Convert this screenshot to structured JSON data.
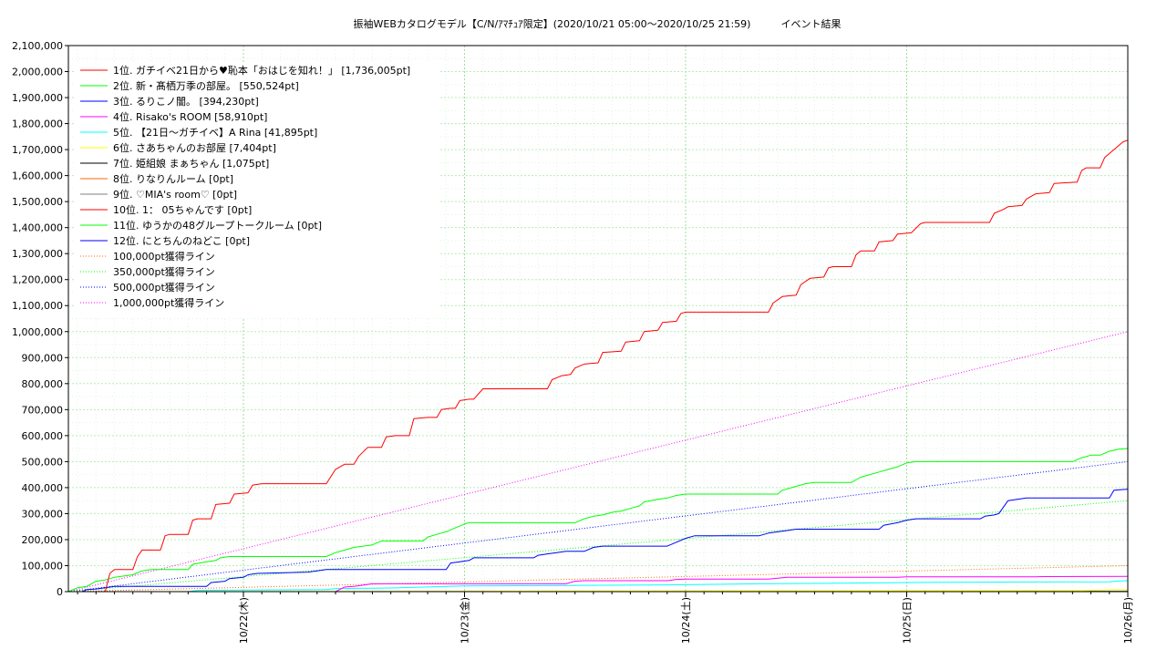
{
  "chart_data": {
    "type": "line",
    "title": "振袖WEBカタログモデル【C/N/ｱﾏﾁｭｱ限定】(2020/10/21 05:00～2020/10/25 21:59)　　　イベント結果",
    "xlabel": "",
    "ylabel": "",
    "ylim": [
      0,
      2100000
    ],
    "y_ticks": [
      "0",
      "100,000",
      "200,000",
      "300,000",
      "400,000",
      "500,000",
      "600,000",
      "700,000",
      "800,000",
      "900,000",
      "1,000,000",
      "1,100,000",
      "1,200,000",
      "1,300,000",
      "1,400,000",
      "1,500,000",
      "1,600,000",
      "1,700,000",
      "1,800,000",
      "1,900,000",
      "2,000,000",
      "2,100,000"
    ],
    "x_range_hours": [
      5,
      120
    ],
    "x_ticks": [
      {
        "label": "10/22(木)",
        "hour": 24
      },
      {
        "label": "10/23(金)",
        "hour": 48
      },
      {
        "label": "10/24(土)",
        "hour": 72
      },
      {
        "label": "10/25(日)",
        "hour": 96
      },
      {
        "label": "10/26(月)",
        "hour": 120
      }
    ],
    "grid": true,
    "legend_position": "top-left",
    "series": [
      {
        "name": "1位. ガチイベ21日から♥恥本「おはじを知れ！」 [1,736,005pt]",
        "color": "#ff0000",
        "points": [
          [
            5,
            0
          ],
          [
            9,
            0
          ],
          [
            9.5,
            70000
          ],
          [
            10,
            85000
          ],
          [
            12,
            85000
          ],
          [
            12.5,
            135000
          ],
          [
            13,
            160000
          ],
          [
            15,
            160000
          ],
          [
            15.5,
            215000
          ],
          [
            16,
            220000
          ],
          [
            18,
            220000
          ],
          [
            18.5,
            275000
          ],
          [
            19,
            280000
          ],
          [
            20.5,
            280000
          ],
          [
            21,
            335000
          ],
          [
            22.5,
            340000
          ],
          [
            23,
            375000
          ],
          [
            24.5,
            380000
          ],
          [
            25,
            410000
          ],
          [
            26,
            415000
          ],
          [
            33,
            415000
          ],
          [
            34,
            470000
          ],
          [
            35,
            490000
          ],
          [
            36,
            490000
          ],
          [
            36.5,
            520000
          ],
          [
            37.5,
            555000
          ],
          [
            39,
            555000
          ],
          [
            39.5,
            595000
          ],
          [
            40.5,
            600000
          ],
          [
            42,
            600000
          ],
          [
            42.5,
            665000
          ],
          [
            44,
            670000
          ],
          [
            45,
            670000
          ],
          [
            45.5,
            700000
          ],
          [
            46.5,
            705000
          ],
          [
            47,
            705000
          ],
          [
            47.5,
            735000
          ],
          [
            48.5,
            740000
          ],
          [
            49,
            740000
          ],
          [
            50,
            780000
          ],
          [
            57,
            780000
          ],
          [
            57.5,
            815000
          ],
          [
            58.5,
            830000
          ],
          [
            59.5,
            835000
          ],
          [
            60,
            860000
          ],
          [
            61,
            875000
          ],
          [
            62.5,
            880000
          ],
          [
            63,
            920000
          ],
          [
            65,
            925000
          ],
          [
            65.5,
            960000
          ],
          [
            67,
            965000
          ],
          [
            67.5,
            1000000
          ],
          [
            69,
            1005000
          ],
          [
            69.5,
            1035000
          ],
          [
            71,
            1040000
          ],
          [
            71.5,
            1070000
          ],
          [
            72,
            1075000
          ],
          [
            81,
            1075000
          ],
          [
            81.5,
            1110000
          ],
          [
            82.5,
            1135000
          ],
          [
            84,
            1140000
          ],
          [
            84.5,
            1180000
          ],
          [
            85.5,
            1205000
          ],
          [
            87,
            1210000
          ],
          [
            87.5,
            1245000
          ],
          [
            88,
            1250000
          ],
          [
            90,
            1250000
          ],
          [
            90.5,
            1295000
          ],
          [
            91,
            1310000
          ],
          [
            92.5,
            1310000
          ],
          [
            93,
            1345000
          ],
          [
            94.5,
            1350000
          ],
          [
            95,
            1375000
          ],
          [
            96.5,
            1380000
          ],
          [
            97.5,
            1415000
          ],
          [
            98,
            1420000
          ],
          [
            105,
            1420000
          ],
          [
            105.5,
            1455000
          ],
          [
            106.5,
            1470000
          ],
          [
            107,
            1480000
          ],
          [
            108.5,
            1485000
          ],
          [
            109,
            1510000
          ],
          [
            110,
            1530000
          ],
          [
            111.5,
            1535000
          ],
          [
            112,
            1570000
          ],
          [
            114.5,
            1575000
          ],
          [
            115,
            1620000
          ],
          [
            115.5,
            1630000
          ],
          [
            117,
            1630000
          ],
          [
            117.5,
            1670000
          ],
          [
            118.5,
            1700000
          ],
          [
            119.5,
            1730000
          ],
          [
            120,
            1736005
          ]
        ]
      },
      {
        "name": "2位. 新・髙栖万季の部屋。 [550,524pt]",
        "color": "#00ff00",
        "points": [
          [
            5,
            0
          ],
          [
            6,
            15000
          ],
          [
            7,
            20000
          ],
          [
            8,
            40000
          ],
          [
            9,
            45000
          ],
          [
            10,
            55000
          ],
          [
            11,
            60000
          ],
          [
            12,
            65000
          ],
          [
            13,
            80000
          ],
          [
            14,
            85000
          ],
          [
            18,
            85000
          ],
          [
            18.5,
            105000
          ],
          [
            20,
            115000
          ],
          [
            21,
            120000
          ],
          [
            21.5,
            130000
          ],
          [
            22.5,
            135000
          ],
          [
            33,
            135000
          ],
          [
            34,
            150000
          ],
          [
            35,
            160000
          ],
          [
            36,
            170000
          ],
          [
            37,
            175000
          ],
          [
            38,
            180000
          ],
          [
            39,
            195000
          ],
          [
            43.5,
            195000
          ],
          [
            44,
            210000
          ],
          [
            45,
            220000
          ],
          [
            46,
            230000
          ],
          [
            47,
            245000
          ],
          [
            48,
            260000
          ],
          [
            48.5,
            265000
          ],
          [
            60,
            265000
          ],
          [
            61,
            280000
          ],
          [
            62,
            290000
          ],
          [
            63,
            295000
          ],
          [
            64,
            305000
          ],
          [
            65,
            310000
          ],
          [
            66,
            320000
          ],
          [
            67,
            330000
          ],
          [
            67.5,
            345000
          ],
          [
            69,
            355000
          ],
          [
            70,
            360000
          ],
          [
            71,
            370000
          ],
          [
            72,
            375000
          ],
          [
            82,
            375000
          ],
          [
            82.5,
            390000
          ],
          [
            84,
            405000
          ],
          [
            85,
            415000
          ],
          [
            86,
            420000
          ],
          [
            90,
            420000
          ],
          [
            91,
            440000
          ],
          [
            92,
            450000
          ],
          [
            93,
            460000
          ],
          [
            94,
            470000
          ],
          [
            95,
            480000
          ],
          [
            96,
            495000
          ],
          [
            97,
            500000
          ],
          [
            114,
            500000
          ],
          [
            115,
            515000
          ],
          [
            116,
            525000
          ],
          [
            117,
            525000
          ],
          [
            118,
            540000
          ],
          [
            119,
            548000
          ],
          [
            120,
            550524
          ]
        ]
      },
      {
        "name": "3位. るりこノ闇。 [394,230pt]",
        "color": "#0000ff",
        "points": [
          [
            5,
            0
          ],
          [
            6.5,
            0
          ],
          [
            7,
            8000
          ],
          [
            8,
            10000
          ],
          [
            9,
            15000
          ],
          [
            10,
            20000
          ],
          [
            20,
            20000
          ],
          [
            20.5,
            35000
          ],
          [
            22,
            40000
          ],
          [
            22.5,
            50000
          ],
          [
            24,
            55000
          ],
          [
            24.5,
            65000
          ],
          [
            25.5,
            70000
          ],
          [
            31,
            75000
          ],
          [
            32,
            80000
          ],
          [
            33,
            85000
          ],
          [
            46,
            85000
          ],
          [
            46.5,
            110000
          ],
          [
            47.5,
            115000
          ],
          [
            48.5,
            120000
          ],
          [
            49,
            130000
          ],
          [
            55.5,
            130000
          ],
          [
            56,
            140000
          ],
          [
            57,
            145000
          ],
          [
            58,
            150000
          ],
          [
            59,
            155000
          ],
          [
            61,
            155000
          ],
          [
            62,
            170000
          ],
          [
            63,
            175000
          ],
          [
            70,
            175000
          ],
          [
            71,
            190000
          ],
          [
            72,
            205000
          ],
          [
            73,
            215000
          ],
          [
            80,
            215000
          ],
          [
            81,
            225000
          ],
          [
            82,
            230000
          ],
          [
            83,
            235000
          ],
          [
            84,
            240000
          ],
          [
            93,
            240000
          ],
          [
            93.5,
            255000
          ],
          [
            95,
            265000
          ],
          [
            96,
            275000
          ],
          [
            97,
            280000
          ],
          [
            104,
            280000
          ],
          [
            104.5,
            290000
          ],
          [
            105.5,
            295000
          ],
          [
            106,
            300000
          ],
          [
            106.5,
            325000
          ],
          [
            107,
            350000
          ],
          [
            108,
            355000
          ],
          [
            109,
            360000
          ],
          [
            118,
            360000
          ],
          [
            118.5,
            390000
          ],
          [
            120,
            394230
          ]
        ]
      },
      {
        "name": "4位. Risako's ROOM [58,910pt]",
        "color": "#ff00ff",
        "points": [
          [
            5,
            0
          ],
          [
            34,
            0
          ],
          [
            35,
            18000
          ],
          [
            36,
            20000
          ],
          [
            37,
            25000
          ],
          [
            38,
            30000
          ],
          [
            59,
            30000
          ],
          [
            60,
            40000
          ],
          [
            61,
            42000
          ],
          [
            70,
            42000
          ],
          [
            71,
            47000
          ],
          [
            72,
            48000
          ],
          [
            81,
            48000
          ],
          [
            82,
            52000
          ],
          [
            83,
            55000
          ],
          [
            95,
            55000
          ],
          [
            96,
            57000
          ],
          [
            110,
            57000
          ],
          [
            111,
            58000
          ],
          [
            120,
            58910
          ]
        ]
      },
      {
        "name": "5位. 【21日～ガチイベ】A Rina [41,895pt]",
        "color": "#00ffff",
        "points": [
          [
            5,
            0
          ],
          [
            18,
            0
          ],
          [
            19,
            5000
          ],
          [
            33,
            8000
          ],
          [
            34,
            12000
          ],
          [
            40,
            14000
          ],
          [
            44,
            18000
          ],
          [
            48,
            22000
          ],
          [
            60,
            24000
          ],
          [
            70,
            26000
          ],
          [
            80,
            30000
          ],
          [
            90,
            33000
          ],
          [
            100,
            36000
          ],
          [
            110,
            37000
          ],
          [
            118,
            38000
          ],
          [
            119,
            41000
          ],
          [
            120,
            41895
          ]
        ]
      },
      {
        "name": "6位. さあちゃんのお部屋 [7,404pt]",
        "color": "#ffff00",
        "points": [
          [
            5,
            0
          ],
          [
            40,
            1000
          ],
          [
            60,
            2000
          ],
          [
            80,
            3000
          ],
          [
            100,
            3500
          ],
          [
            115,
            4000
          ],
          [
            118,
            7000
          ],
          [
            120,
            7404
          ]
        ]
      },
      {
        "name": "7位. 姫組娘 まぁちゃん [1,075pt]",
        "color": "#000000",
        "points": [
          [
            5,
            0
          ],
          [
            60,
            500
          ],
          [
            120,
            1075
          ]
        ]
      },
      {
        "name": "8位. りなりんルーム [0pt]",
        "color": "#ff6600",
        "points": [
          [
            5,
            0
          ],
          [
            120,
            0
          ]
        ]
      },
      {
        "name": "9位. ♡MIA's room♡ [0pt]",
        "color": "#808080",
        "points": [
          [
            5,
            0
          ],
          [
            120,
            0
          ]
        ]
      },
      {
        "name": "10位. 1： 05ちゃんです [0pt]",
        "color": "#ff0000",
        "points": [
          [
            5,
            0
          ],
          [
            120,
            0
          ]
        ]
      },
      {
        "name": "11位. ゆうかの48グループトークルーム [0pt]",
        "color": "#00ff00",
        "points": [
          [
            5,
            0
          ],
          [
            120,
            0
          ]
        ]
      },
      {
        "name": "12位. にとちんのねどこ [0pt]",
        "color": "#0000ff",
        "points": [
          [
            5,
            0
          ],
          [
            120,
            0
          ]
        ]
      },
      {
        "name": "100,000pt獲得ライン",
        "color": "#ff6600",
        "dotted": true,
        "points": [
          [
            5,
            0
          ],
          [
            120,
            100000
          ]
        ]
      },
      {
        "name": "350,000pt獲得ライン",
        "color": "#00ff00",
        "dotted": true,
        "points": [
          [
            5,
            0
          ],
          [
            120,
            350000
          ]
        ]
      },
      {
        "name": "500,000pt獲得ライン",
        "color": "#0000ff",
        "dotted": true,
        "points": [
          [
            5,
            0
          ],
          [
            120,
            500000
          ]
        ]
      },
      {
        "name": "1,000,000pt獲得ライン",
        "color": "#ff00ff",
        "dotted": true,
        "points": [
          [
            5,
            0
          ],
          [
            120,
            1000000
          ]
        ]
      }
    ]
  }
}
